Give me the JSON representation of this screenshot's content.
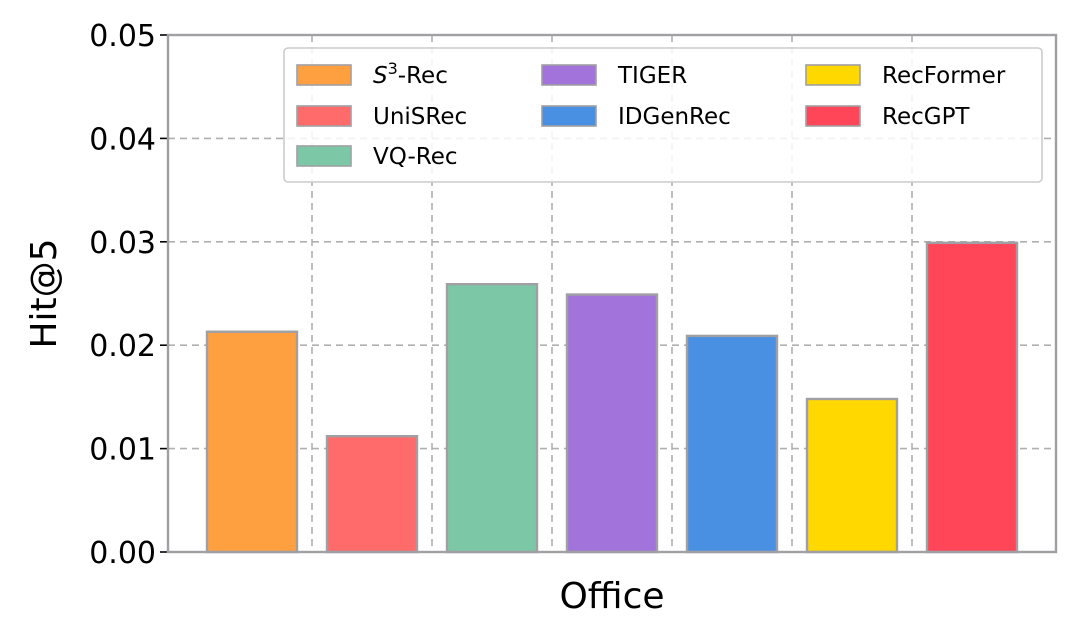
{
  "chart_data": {
    "type": "bar",
    "xlabel": "Office",
    "ylabel": "Hit@5",
    "ylim": [
      0,
      0.05
    ],
    "yticks": [
      "0.00",
      "0.01",
      "0.02",
      "0.03",
      "0.04",
      "0.05"
    ],
    "grid": true,
    "legend_position": "top-right",
    "series": [
      {
        "name": "S³-Rec",
        "value": 0.0213,
        "color": "#ffa040"
      },
      {
        "name": "UniSRec",
        "value": 0.0112,
        "color": "#ff6b6b"
      },
      {
        "name": "VQ-Rec",
        "value": 0.0259,
        "color": "#7cc8a6"
      },
      {
        "name": "TIGER",
        "value": 0.0249,
        "color": "#a274db"
      },
      {
        "name": "IDGenRec",
        "value": 0.0209,
        "color": "#4a90e2"
      },
      {
        "name": "RecFormer",
        "value": 0.0148,
        "color": "#ffd800"
      },
      {
        "name": "RecGPT",
        "value": 0.0299,
        "color": "#ff4558"
      }
    ]
  }
}
